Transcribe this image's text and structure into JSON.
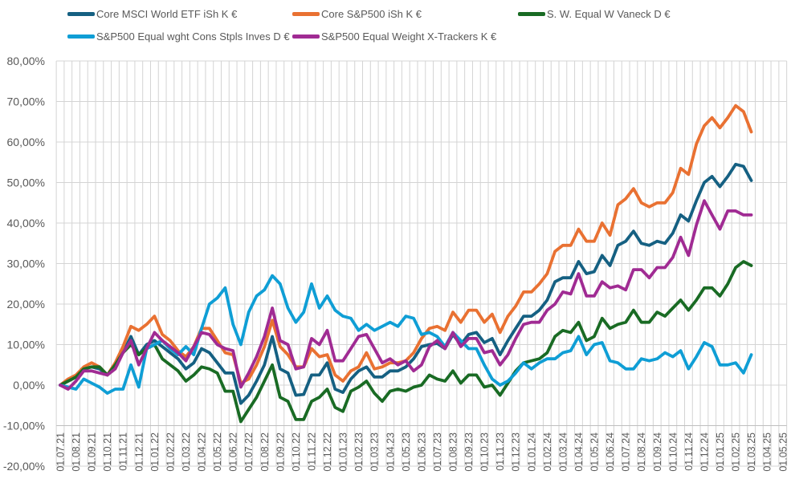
{
  "chart_data": {
    "type": "line",
    "title": "",
    "xlabel": "",
    "ylabel": "",
    "ylim": [
      -20,
      80
    ],
    "y_step": 10,
    "y_tick_labels": [
      "80,00%",
      "70,00%",
      "60,00%",
      "50,00%",
      "40,00%",
      "30,00%",
      "20,00%",
      "10,00%",
      "0,00%",
      "-10,00%",
      "-20,00%"
    ],
    "x_tick_labels": [
      "01.07.21",
      "01.08.21",
      "01.09.21",
      "01.10.21",
      "01.11.21",
      "01.12.21",
      "01.01.22",
      "01.02.22",
      "01.03.22",
      "01.04.22",
      "01.05.22",
      "01.06.22",
      "01.07.22",
      "01.08.22",
      "01.09.22",
      "01.10.22",
      "01.11.22",
      "01.12.22",
      "01.01.23",
      "01.02.23",
      "01.03.23",
      "01.04.23",
      "01.05.23",
      "01.06.23",
      "01.07.23",
      "01.08.23",
      "01.09.23",
      "01.10.23",
      "01.11.23",
      "01.12.23",
      "01.01.24",
      "01.02.24",
      "01.03.24",
      "01.04.24",
      "01.05.24",
      "01.06.24",
      "01.07.24",
      "01.08.24",
      "01.09.24",
      "01.10.24",
      "01.11.24",
      "01.12.24",
      "01.01.25",
      "01.02.25",
      "01.03.25",
      "01.04.25",
      "01.05.25"
    ],
    "x_interval": "half-monthly points starting 01.07.21",
    "grid": true,
    "legend_position": "top",
    "series": [
      {
        "name": "Core MSCI World ETF iSh K €",
        "color": "#156082",
        "values": [
          0,
          1,
          2,
          4,
          4.5,
          4,
          2.5,
          5,
          8,
          12,
          7.5,
          10,
          11,
          9.5,
          8,
          6.5,
          4,
          5.5,
          9,
          8,
          5.5,
          3,
          3,
          -4.5,
          -2.5,
          1,
          5,
          12,
          4,
          3,
          -2.5,
          -2.3,
          2.5,
          2.5,
          5.5,
          -1,
          -1.8,
          1.5,
          3.5,
          4.5,
          2,
          2,
          3.5,
          3.5,
          4.5,
          6.5,
          9.5,
          10,
          10.3,
          9,
          12.5,
          10,
          12.5,
          13,
          10.5,
          11.5,
          7.5,
          11,
          14,
          17,
          17,
          18.5,
          21,
          25.5,
          26.5,
          26.5,
          30.5,
          27.5,
          28,
          32,
          29.5,
          34.5,
          35.5,
          38,
          35,
          34.5,
          35.5,
          35,
          37.5,
          42,
          40.5,
          45.5,
          50,
          51.5,
          49,
          51.5,
          54.5,
          54,
          50.5
        ]
      },
      {
        "name": "Core S&P500 iSh K €",
        "color": "#E97132",
        "values": [
          0,
          1.5,
          2.5,
          4.5,
          5.5,
          4.5,
          2.5,
          5.5,
          9.5,
          14.5,
          13.5,
          15,
          17,
          12.5,
          11,
          8.5,
          7,
          9.5,
          14,
          14,
          11,
          8,
          7.5,
          0.5,
          1.5,
          5,
          9.5,
          16,
          9.5,
          7.5,
          4.5,
          4.5,
          9,
          7,
          7.5,
          2.5,
          1,
          3.5,
          4.5,
          8,
          4,
          4.5,
          5.5,
          5.5,
          6,
          8,
          11.5,
          14,
          14.5,
          13.5,
          18,
          15.5,
          18.5,
          18.5,
          15.5,
          17.5,
          13,
          17,
          19.5,
          23,
          23,
          25,
          27.5,
          33,
          34.5,
          34.5,
          38.5,
          35.5,
          35.5,
          40,
          37,
          44.5,
          46,
          48.5,
          45,
          44,
          45,
          45,
          47.5,
          53.5,
          52,
          59.5,
          64,
          66,
          63.5,
          66,
          69,
          67.5,
          62.5
        ]
      },
      {
        "name": "S. W. Equal W Vaneck D €",
        "color": "#196B24",
        "values": [
          0,
          1,
          2,
          4,
          4.5,
          4.5,
          2.5,
          5,
          8,
          10,
          7.5,
          9,
          10,
          6.5,
          5,
          3.5,
          1,
          2.5,
          4.5,
          4,
          3,
          -1.5,
          -1.5,
          -9,
          -6,
          -3,
          1,
          5,
          -3,
          -4,
          -8.5,
          -8.5,
          -4,
          -3,
          -1,
          -5.5,
          -6.5,
          -1.5,
          -0.5,
          1,
          -2,
          -4,
          -1.5,
          -1,
          -1.5,
          -0.5,
          0,
          2.5,
          1.5,
          1,
          3.5,
          0.5,
          2.5,
          2.5,
          -0.5,
          0,
          -2.5,
          0.5,
          3.5,
          5.5,
          6,
          6.5,
          8,
          12,
          13.5,
          13,
          15.5,
          11,
          12,
          16.5,
          14,
          15,
          15.5,
          18.5,
          15.5,
          15.5,
          18,
          17,
          19,
          21,
          18.5,
          21,
          24,
          24,
          22,
          25,
          29,
          30.5,
          29.5
        ]
      },
      {
        "name": "S&P500 Equal wght Cons Stpls Inves D €",
        "color": "#0F9ED5",
        "values": [
          0,
          -0.5,
          -1,
          1.5,
          0.5,
          -0.5,
          -2,
          -1,
          -1,
          5,
          -0.5,
          9,
          10,
          11,
          9,
          7.5,
          9.5,
          7.5,
          14,
          20,
          21.5,
          24,
          15,
          10,
          18,
          22,
          23.5,
          27,
          25,
          19,
          15.5,
          18,
          25,
          19,
          22,
          18.5,
          17,
          16.5,
          13.5,
          15,
          13.5,
          14.5,
          15.5,
          14.5,
          17,
          16.5,
          12.5,
          13,
          12,
          9.5,
          13,
          11,
          9,
          9,
          5,
          1.5,
          0,
          1,
          3,
          5.5,
          4,
          5.5,
          6.5,
          6.5,
          8,
          8.5,
          12,
          7.5,
          10,
          10.5,
          6,
          5.5,
          4,
          4,
          6.5,
          6,
          6.5,
          8,
          7,
          8.5,
          4,
          7,
          10.5,
          9.5,
          5,
          5,
          5.5,
          3,
          7.5
        ]
      },
      {
        "name": "S&P500 Equal Weight X-Trackers K €",
        "color": "#A02B93",
        "values": [
          0,
          -1,
          1,
          3.5,
          3.5,
          3,
          2.5,
          4,
          8,
          11,
          5,
          9,
          13,
          11,
          9.5,
          8,
          6,
          9.5,
          13,
          12.5,
          10,
          9,
          8.5,
          -0.5,
          3,
          7,
          12,
          19,
          11,
          10,
          4,
          4.5,
          11.5,
          10,
          13.5,
          6,
          6,
          9,
          12,
          12.5,
          9,
          5.5,
          6.5,
          5,
          6,
          3.5,
          5,
          9.5,
          11,
          9,
          13,
          9.5,
          11.5,
          11.5,
          8,
          8.5,
          5,
          7.5,
          11.5,
          15,
          15.5,
          15.5,
          18.5,
          20,
          23,
          22.5,
          27.5,
          22,
          22,
          25.5,
          24,
          24.5,
          23.5,
          28.5,
          28.5,
          26.5,
          29,
          29,
          31.5,
          36.5,
          32,
          39.5,
          45.5,
          42,
          38.5,
          43,
          43,
          42,
          42
        ]
      }
    ]
  }
}
